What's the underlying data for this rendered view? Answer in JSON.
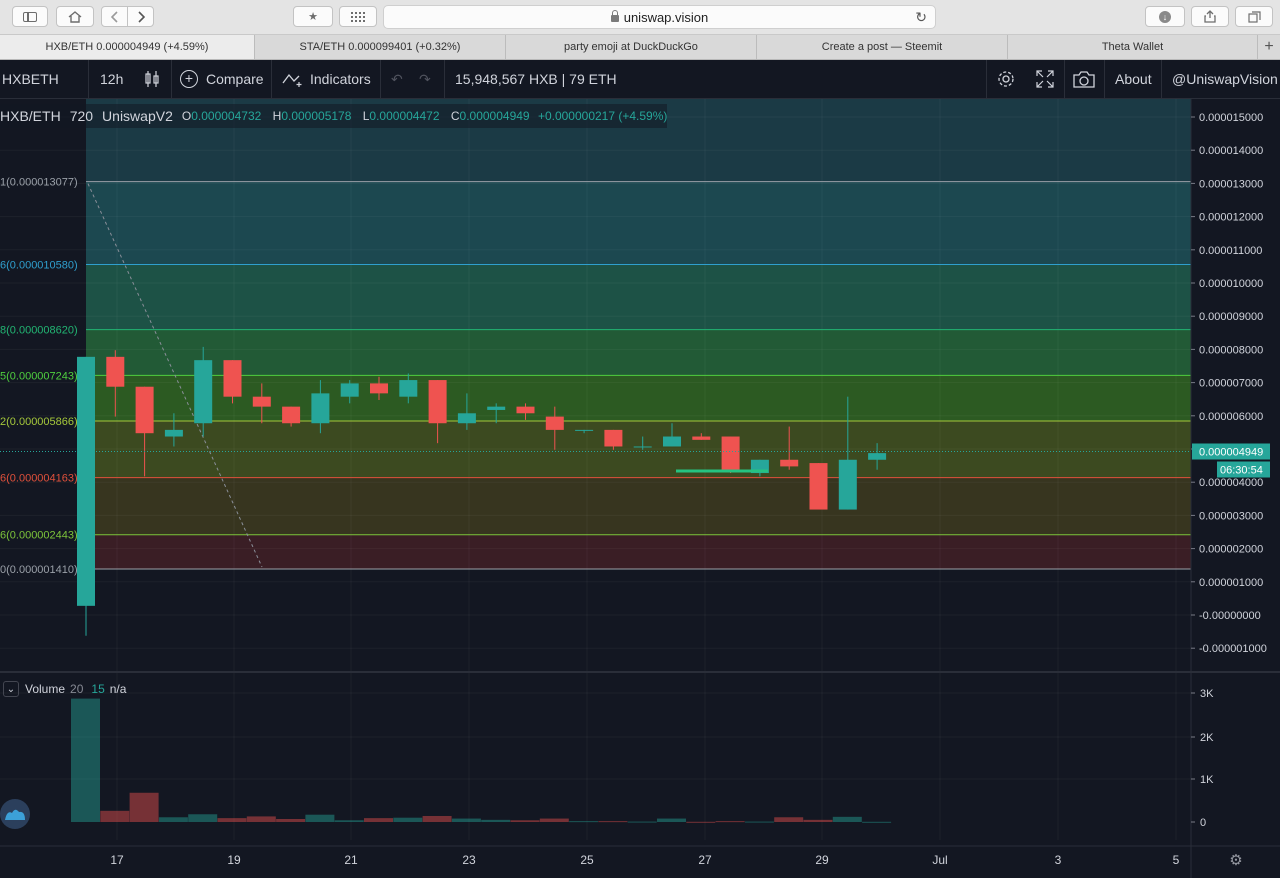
{
  "browser": {
    "url": "uniswap.vision",
    "tabs": [
      {
        "label": "HXB/ETH 0.000004949 (+4.59%)"
      },
      {
        "label": "STA/ETH 0.000099401 (+0.32%)"
      },
      {
        "label": "party emoji at DuckDuckGo"
      },
      {
        "label": "Create a post — Steemit"
      },
      {
        "label": "Theta Wallet"
      }
    ]
  },
  "header": {
    "symbol": "HXBETH",
    "interval": "12h",
    "compare_label": "Compare",
    "indicators_label": "Indicators",
    "liquidity": "15,948,567 HXB | 79 ETH",
    "about_label": "About",
    "handle_label": "@UniswapVision"
  },
  "legend": {
    "pair": "HXB/ETH",
    "interval": "720",
    "exchange": "UniswapV2",
    "o_key": "O",
    "o": "0.000004732",
    "h_key": "H",
    "h": "0.000005178",
    "l_key": "L",
    "l": "0.000004472",
    "c_key": "C",
    "c": "0.000004949",
    "change": "+0.000000217 (+4.59%)"
  },
  "volume_legend": {
    "label": "Volume",
    "p1": "20",
    "p2": "15",
    "value": "n/a"
  },
  "colors": {
    "up": "#26a69a",
    "down": "#ef5350",
    "background": "#131722"
  },
  "chart_data": {
    "type": "candlestick",
    "title": "HXB/ETH",
    "interval": "12h",
    "price_axis": {
      "ticks": [
        "0.000015000",
        "0.000014000",
        "0.000013000",
        "0.000012000",
        "0.000011000",
        "0.000010000",
        "0.000009000",
        "0.000008000",
        "0.000007000",
        "0.000006000",
        "0.000005000",
        "0.000004000",
        "0.000003000",
        "0.000002000",
        "0.000001000",
        "-0.00000000",
        "-0.000001000"
      ],
      "ylim": [
        -1.2e-06,
        1.55e-05
      ]
    },
    "x_ticks": [
      "17",
      "19",
      "21",
      "23",
      "25",
      "27",
      "29",
      "Jul",
      "3",
      "5"
    ],
    "last_price": "0.000004949",
    "countdown": "06:30:54",
    "fib_levels": [
      {
        "label": "1(0.000013077)",
        "value": 1.3077e-05,
        "color": "#9aa0a8"
      },
      {
        "label": "6(0.000010580)",
        "value": 1.058e-05,
        "color": "#2f9fce"
      },
      {
        "label": "8(0.000008620)",
        "value": 8.62e-06,
        "color": "#22b573"
      },
      {
        "label": "5(0.000007243)",
        "value": 7.243e-06,
        "color": "#4fcf3f"
      },
      {
        "label": "2(0.000005866)",
        "value": 5.866e-06,
        "color": "#a5c83b"
      },
      {
        "label": "6(0.000004163)",
        "value": 4.163e-06,
        "color": "#e0503b"
      },
      {
        "label": "6(0.000002443)",
        "value": 2.443e-06,
        "color": "#7cc43a"
      },
      {
        "label": "0(0.000001410)",
        "value": 1.41e-06,
        "color": "#9aa0a8"
      }
    ],
    "candles": [
      {
        "o": 3e-07,
        "h": 7.8e-06,
        "l": -6e-07,
        "c": 7.8e-06
      },
      {
        "o": 7.8e-06,
        "h": 8e-06,
        "l": 6e-06,
        "c": 6.9e-06
      },
      {
        "o": 6.9e-06,
        "h": 6.9e-06,
        "l": 4.2e-06,
        "c": 5.5e-06
      },
      {
        "o": 5.4e-06,
        "h": 6.1e-06,
        "l": 5.1e-06,
        "c": 5.6e-06
      },
      {
        "o": 5.8e-06,
        "h": 8.1e-06,
        "l": 5.4e-06,
        "c": 7.7e-06
      },
      {
        "o": 7.7e-06,
        "h": 7.7e-06,
        "l": 6.4e-06,
        "c": 6.6e-06
      },
      {
        "o": 6.6e-06,
        "h": 7e-06,
        "l": 5.8e-06,
        "c": 6.3e-06
      },
      {
        "o": 6.3e-06,
        "h": 6.3e-06,
        "l": 5.7e-06,
        "c": 5.8e-06
      },
      {
        "o": 5.8e-06,
        "h": 7.1e-06,
        "l": 5.5e-06,
        "c": 6.7e-06
      },
      {
        "o": 6.6e-06,
        "h": 7.1e-06,
        "l": 6.4e-06,
        "c": 7e-06
      },
      {
        "o": 7e-06,
        "h": 7.2e-06,
        "l": 6.5e-06,
        "c": 6.7e-06
      },
      {
        "o": 6.6e-06,
        "h": 7.3e-06,
        "l": 6.4e-06,
        "c": 7.1e-06
      },
      {
        "o": 7.1e-06,
        "h": 7.1e-06,
        "l": 5.2e-06,
        "c": 5.8e-06
      },
      {
        "o": 5.8e-06,
        "h": 6.7e-06,
        "l": 5.6e-06,
        "c": 6.1e-06
      },
      {
        "o": 6.2e-06,
        "h": 6.4e-06,
        "l": 5.8e-06,
        "c": 6.3e-06
      },
      {
        "o": 6.3e-06,
        "h": 6.4e-06,
        "l": 5.9e-06,
        "c": 6.1e-06
      },
      {
        "o": 6e-06,
        "h": 6.3e-06,
        "l": 5e-06,
        "c": 5.6e-06
      },
      {
        "o": 5.6e-06,
        "h": 5.6e-06,
        "l": 5.5e-06,
        "c": 5.6e-06
      },
      {
        "o": 5.6e-06,
        "h": 5.6e-06,
        "l": 5e-06,
        "c": 5.1e-06
      },
      {
        "o": 5.1e-06,
        "h": 5.4e-06,
        "l": 5e-06,
        "c": 5.1e-06
      },
      {
        "o": 5.1e-06,
        "h": 5.8e-06,
        "l": 5.1e-06,
        "c": 5.4e-06
      },
      {
        "o": 5.4e-06,
        "h": 5.5e-06,
        "l": 5.3e-06,
        "c": 5.3e-06
      },
      {
        "o": 5.4e-06,
        "h": 5.4e-06,
        "l": 4.3e-06,
        "c": 4.4e-06
      },
      {
        "o": 4.3e-06,
        "h": 4.7e-06,
        "l": 4.2e-06,
        "c": 4.7e-06
      },
      {
        "o": 4.7e-06,
        "h": 5.7e-06,
        "l": 4.4e-06,
        "c": 4.5e-06
      },
      {
        "o": 4.6e-06,
        "h": 4.6e-06,
        "l": 3.2e-06,
        "c": 3.2e-06
      },
      {
        "o": 3.2e-06,
        "h": 6.6e-06,
        "l": 3.2e-06,
        "c": 4.7e-06
      },
      {
        "o": 4.7e-06,
        "h": 5.2e-06,
        "l": 4.4e-06,
        "c": 4.9e-06
      }
    ],
    "volume_axis": {
      "ticks": [
        "3K",
        "2K",
        "1K",
        "0"
      ],
      "ylim": [
        0,
        3500
      ]
    },
    "volume": [
      2870,
      260,
      680,
      110,
      180,
      90,
      130,
      70,
      170,
      40,
      90,
      100,
      140,
      80,
      50,
      40,
      80,
      20,
      20,
      10,
      80,
      5,
      20,
      10,
      110,
      50,
      120,
      5
    ]
  }
}
